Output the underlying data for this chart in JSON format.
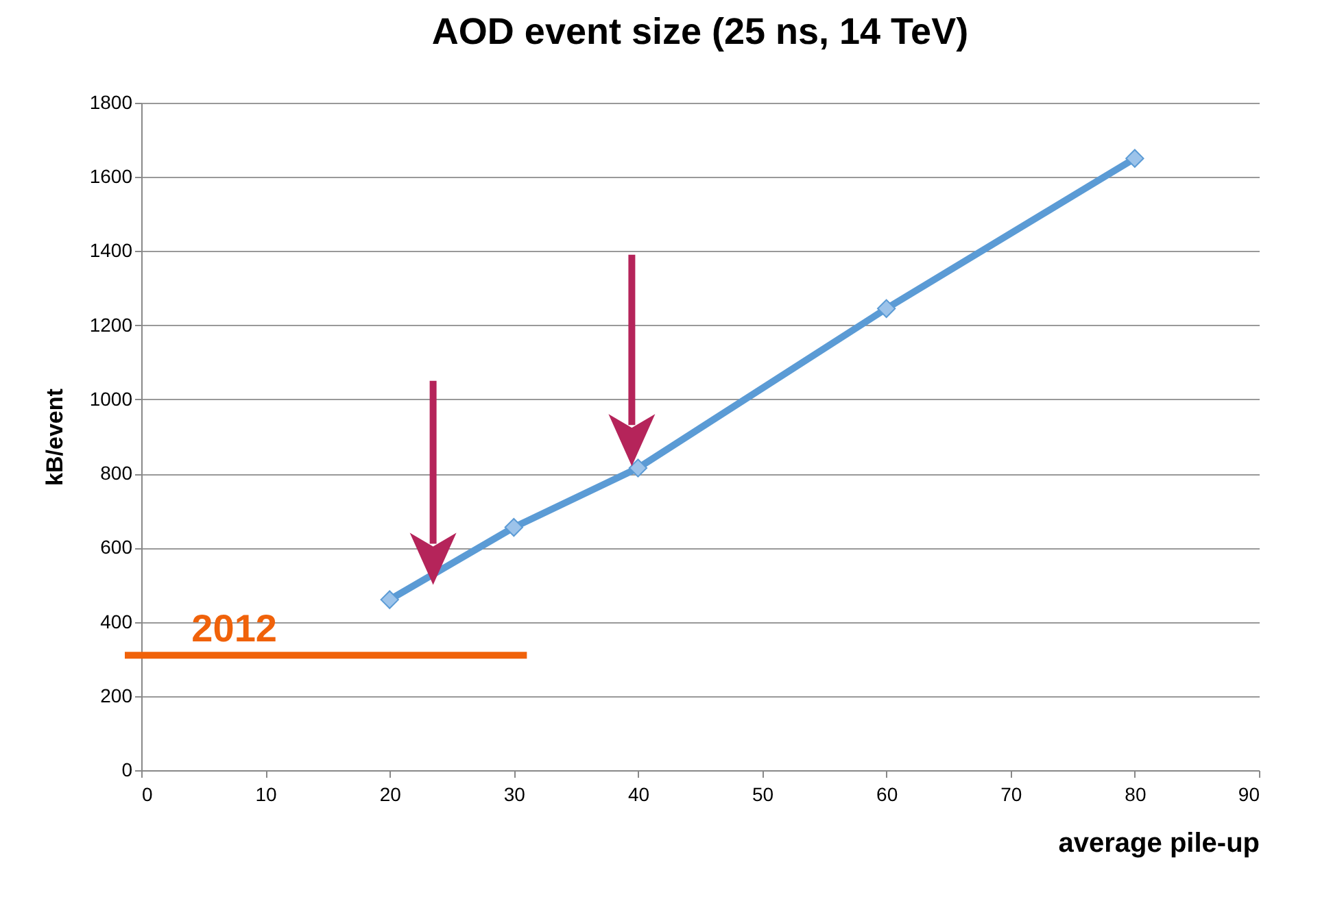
{
  "chart_data": {
    "type": "line",
    "title": "AOD event size (25 ns, 14 TeV)",
    "xlabel": "average pile-up",
    "ylabel": "kB/event",
    "x": [
      20,
      30,
      40,
      60,
      80
    ],
    "series": [
      {
        "color": "#5b9bd5",
        "values": [
          460,
          655,
          815,
          1245,
          1650
        ]
      }
    ],
    "xlim": [
      0,
      90
    ],
    "xticks": [
      0,
      10,
      20,
      30,
      40,
      50,
      60,
      70,
      80,
      90
    ],
    "ylim": [
      0,
      1800
    ],
    "yticks": [
      0,
      200,
      400,
      600,
      800,
      1000,
      1200,
      1400,
      1600,
      1800
    ],
    "ref_lines": [
      {
        "axis": "y",
        "value": 310,
        "color": "#f0620a"
      }
    ],
    "annotations": [
      {
        "text": "2012",
        "y": 310
      }
    ],
    "grid": "y",
    "marker": "diamond"
  }
}
